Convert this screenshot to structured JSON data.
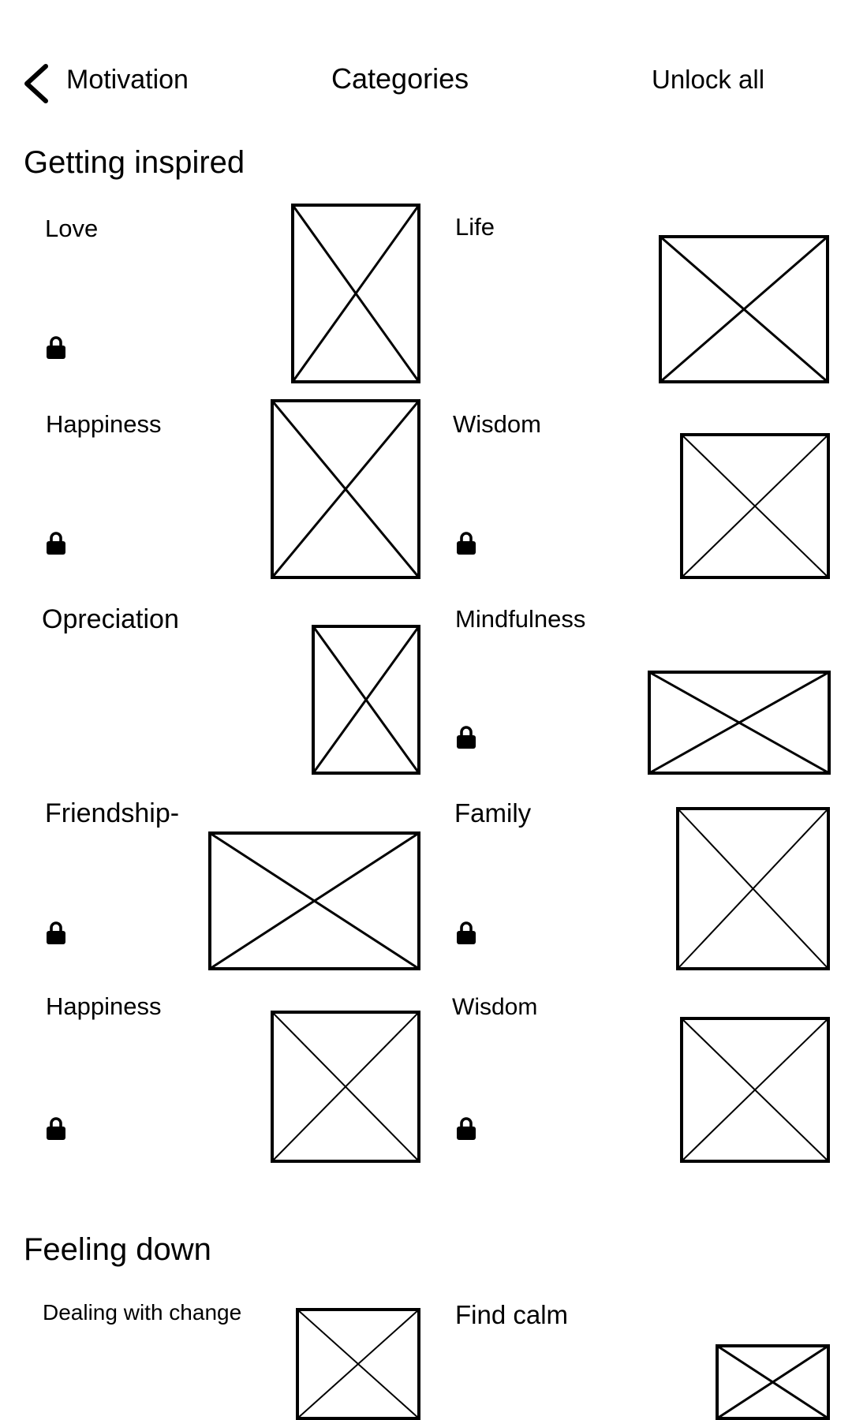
{
  "header": {
    "back_label": "Motivation",
    "title": "Categories",
    "unlock_all_label": "Unlock all"
  },
  "sections": [
    {
      "title": "Getting inspired",
      "items": [
        {
          "label": "Love",
          "locked": true
        },
        {
          "label": "Life",
          "locked": false
        },
        {
          "label": "Happiness",
          "locked": true
        },
        {
          "label": "Wisdom",
          "locked": true
        },
        {
          "label": "Opreciation",
          "locked": false
        },
        {
          "label": "Mindfulness",
          "locked": true
        },
        {
          "label": "Friendship-",
          "locked": true
        },
        {
          "label": "Family",
          "locked": true
        },
        {
          "label": "Happiness",
          "locked": true
        },
        {
          "label": "Wisdom",
          "locked": true
        }
      ]
    },
    {
      "title": "Feeling down",
      "items": [
        {
          "label": "Dealing with change",
          "locked": false
        },
        {
          "label": "Find calm",
          "locked": false
        }
      ]
    }
  ],
  "icons": {
    "back": "chevron-left-icon",
    "lock": "lock-icon",
    "image": "image-placeholder-icon"
  },
  "colors": {
    "background": "#ffffff",
    "foreground": "#000000"
  }
}
